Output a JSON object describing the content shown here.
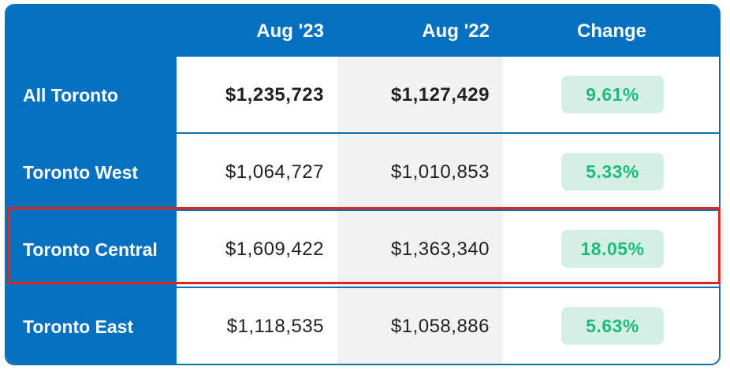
{
  "header": {
    "col1": "Aug '23",
    "col2": "Aug '22",
    "col3": "Change"
  },
  "rows": [
    {
      "label": "All Toronto",
      "aug23": "$1,235,723",
      "aug22": "$1,127,429",
      "change": "9.61%"
    },
    {
      "label": "Toronto West",
      "aug23": "$1,064,727",
      "aug22": "$1,010,853",
      "change": "5.33%"
    },
    {
      "label": "Toronto Central",
      "aug23": "$1,609,422",
      "aug22": "$1,363,340",
      "change": "18.05%"
    },
    {
      "label": "Toronto East",
      "aug23": "$1,118,535",
      "aug22": "$1,058,886",
      "change": "5.63%"
    }
  ],
  "highlighted_row": "Toronto Central",
  "colors": {
    "header_blue": "#0570bf",
    "badge_bg": "#d4f0e4",
    "badge_text": "#1fba7a",
    "highlight": "#e4261a"
  }
}
